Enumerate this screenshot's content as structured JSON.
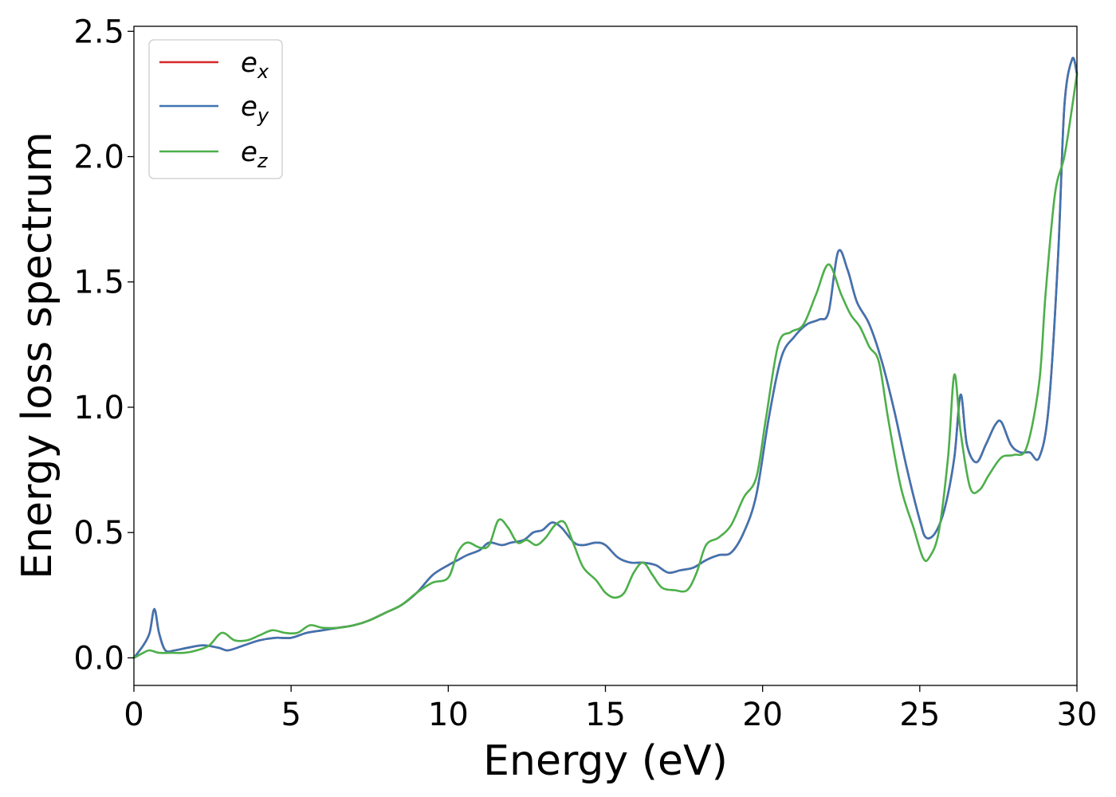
{
  "chart_data": {
    "type": "line",
    "title": "",
    "xlabel": "Energy (eV)",
    "ylabel": "Energy loss spectrum",
    "xlim": [
      0,
      30
    ],
    "ylim": [
      -0.11,
      2.52
    ],
    "xticks": [
      0,
      5,
      10,
      15,
      20,
      25,
      30
    ],
    "xtick_labels": [
      "0",
      "5",
      "10",
      "15",
      "20",
      "25",
      "30"
    ],
    "yticks": [
      0.0,
      0.5,
      1.0,
      1.5,
      2.0,
      2.5
    ],
    "ytick_labels": [
      "0.0",
      "0.5",
      "1.0",
      "1.5",
      "2.0",
      "2.5"
    ],
    "grid": false,
    "legend_position": "top-left",
    "series": [
      {
        "name": "e_x",
        "label_base": "e",
        "label_sub": "x",
        "color": "#d62728",
        "x": [
          0,
          0.3,
          0.5,
          0.65,
          0.8,
          1.0,
          1.3,
          1.7,
          2.2,
          2.7,
          3.0,
          3.5,
          4.0,
          4.5,
          5.0,
          5.5,
          6.0,
          6.5,
          7.0,
          7.5,
          8.0,
          8.5,
          9.0,
          9.5,
          10.0,
          10.3,
          10.6,
          11.0,
          11.3,
          11.7,
          12.0,
          12.4,
          12.7,
          13.0,
          13.3,
          13.6,
          14.0,
          14.3,
          14.7,
          15.0,
          15.4,
          15.8,
          16.2,
          16.6,
          17.0,
          17.4,
          17.8,
          18.2,
          18.6,
          19.0,
          19.4,
          19.8,
          20.2,
          20.6,
          21.0,
          21.4,
          21.8,
          22.1,
          22.4,
          22.7,
          23.0,
          23.4,
          23.8,
          24.2,
          24.6,
          25.0,
          25.2,
          25.5,
          25.8,
          26.1,
          26.3,
          26.5,
          26.8,
          27.1,
          27.4,
          27.6,
          27.9,
          28.2,
          28.5,
          28.8,
          29.1,
          29.4,
          29.6,
          29.85,
          30.0
        ],
        "y": [
          0.0,
          0.05,
          0.1,
          0.195,
          0.1,
          0.03,
          0.03,
          0.04,
          0.05,
          0.04,
          0.03,
          0.05,
          0.07,
          0.08,
          0.08,
          0.1,
          0.11,
          0.12,
          0.13,
          0.15,
          0.18,
          0.21,
          0.26,
          0.33,
          0.37,
          0.39,
          0.41,
          0.43,
          0.46,
          0.45,
          0.46,
          0.47,
          0.5,
          0.51,
          0.54,
          0.52,
          0.46,
          0.45,
          0.46,
          0.45,
          0.4,
          0.38,
          0.38,
          0.37,
          0.34,
          0.35,
          0.36,
          0.39,
          0.41,
          0.42,
          0.5,
          0.65,
          0.96,
          1.2,
          1.28,
          1.33,
          1.35,
          1.38,
          1.62,
          1.55,
          1.42,
          1.33,
          1.18,
          0.98,
          0.75,
          0.55,
          0.48,
          0.5,
          0.6,
          0.8,
          1.05,
          0.85,
          0.78,
          0.85,
          0.93,
          0.94,
          0.85,
          0.82,
          0.82,
          0.8,
          1.0,
          1.6,
          2.2,
          2.39,
          2.33
        ]
      },
      {
        "name": "e_y",
        "label_base": "e",
        "label_sub": "y",
        "color": "#3f74b1",
        "x": [
          0,
          0.3,
          0.5,
          0.65,
          0.8,
          1.0,
          1.3,
          1.7,
          2.2,
          2.7,
          3.0,
          3.5,
          4.0,
          4.5,
          5.0,
          5.5,
          6.0,
          6.5,
          7.0,
          7.5,
          8.0,
          8.5,
          9.0,
          9.5,
          10.0,
          10.3,
          10.6,
          11.0,
          11.3,
          11.7,
          12.0,
          12.4,
          12.7,
          13.0,
          13.3,
          13.6,
          14.0,
          14.3,
          14.7,
          15.0,
          15.4,
          15.8,
          16.2,
          16.6,
          17.0,
          17.4,
          17.8,
          18.2,
          18.6,
          19.0,
          19.4,
          19.8,
          20.2,
          20.6,
          21.0,
          21.4,
          21.8,
          22.1,
          22.4,
          22.7,
          23.0,
          23.4,
          23.8,
          24.2,
          24.6,
          25.0,
          25.2,
          25.5,
          25.8,
          26.1,
          26.3,
          26.5,
          26.8,
          27.1,
          27.4,
          27.6,
          27.9,
          28.2,
          28.5,
          28.8,
          29.1,
          29.4,
          29.6,
          29.85,
          30.0
        ],
        "y": [
          0.0,
          0.05,
          0.1,
          0.195,
          0.1,
          0.03,
          0.03,
          0.04,
          0.05,
          0.04,
          0.03,
          0.05,
          0.07,
          0.08,
          0.08,
          0.1,
          0.11,
          0.12,
          0.13,
          0.15,
          0.18,
          0.21,
          0.26,
          0.33,
          0.37,
          0.39,
          0.41,
          0.43,
          0.46,
          0.45,
          0.46,
          0.47,
          0.5,
          0.51,
          0.54,
          0.52,
          0.46,
          0.45,
          0.46,
          0.45,
          0.4,
          0.38,
          0.38,
          0.37,
          0.34,
          0.35,
          0.36,
          0.39,
          0.41,
          0.42,
          0.5,
          0.65,
          0.96,
          1.2,
          1.28,
          1.33,
          1.35,
          1.38,
          1.62,
          1.55,
          1.42,
          1.33,
          1.18,
          0.98,
          0.75,
          0.55,
          0.48,
          0.5,
          0.6,
          0.8,
          1.05,
          0.85,
          0.78,
          0.85,
          0.93,
          0.94,
          0.85,
          0.82,
          0.82,
          0.8,
          1.0,
          1.6,
          2.2,
          2.39,
          2.33
        ]
      },
      {
        "name": "e_z",
        "label_base": "e",
        "label_sub": "z",
        "color": "#4daf4a",
        "x": [
          0,
          0.3,
          0.5,
          0.8,
          1.2,
          1.6,
          2.0,
          2.4,
          2.8,
          3.2,
          3.6,
          4.0,
          4.4,
          4.8,
          5.2,
          5.6,
          6.0,
          6.5,
          7.0,
          7.5,
          8.0,
          8.5,
          9.0,
          9.5,
          10.0,
          10.3,
          10.6,
          11.0,
          11.3,
          11.6,
          11.9,
          12.2,
          12.5,
          12.8,
          13.1,
          13.4,
          13.7,
          14.0,
          14.3,
          14.7,
          15.0,
          15.3,
          15.6,
          15.9,
          16.2,
          16.5,
          16.8,
          17.2,
          17.6,
          17.9,
          18.2,
          18.6,
          19.0,
          19.4,
          19.8,
          20.1,
          20.5,
          20.9,
          21.3,
          21.7,
          22.1,
          22.5,
          22.8,
          23.1,
          23.4,
          23.7,
          24.0,
          24.4,
          24.8,
          25.1,
          25.3,
          25.6,
          25.9,
          26.1,
          26.3,
          26.6,
          26.9,
          27.2,
          27.6,
          28.0,
          28.4,
          28.8,
          29.0,
          29.3,
          29.6,
          29.85,
          30.0
        ],
        "y": [
          0.0,
          0.02,
          0.03,
          0.02,
          0.02,
          0.02,
          0.03,
          0.05,
          0.1,
          0.07,
          0.07,
          0.09,
          0.11,
          0.1,
          0.1,
          0.13,
          0.12,
          0.12,
          0.13,
          0.15,
          0.18,
          0.21,
          0.26,
          0.3,
          0.32,
          0.42,
          0.46,
          0.44,
          0.45,
          0.55,
          0.52,
          0.46,
          0.47,
          0.45,
          0.48,
          0.53,
          0.54,
          0.45,
          0.36,
          0.31,
          0.26,
          0.24,
          0.26,
          0.34,
          0.38,
          0.33,
          0.28,
          0.27,
          0.27,
          0.34,
          0.45,
          0.48,
          0.53,
          0.64,
          0.72,
          0.95,
          1.25,
          1.3,
          1.33,
          1.45,
          1.57,
          1.45,
          1.37,
          1.32,
          1.24,
          1.18,
          0.95,
          0.68,
          0.52,
          0.4,
          0.4,
          0.5,
          0.8,
          1.13,
          0.9,
          0.68,
          0.67,
          0.73,
          0.8,
          0.81,
          0.84,
          1.1,
          1.45,
          1.85,
          2.0,
          2.2,
          2.33
        ]
      }
    ]
  }
}
